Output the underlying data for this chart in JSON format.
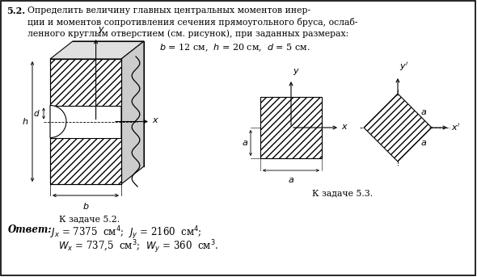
{
  "title_bold": "5.2.",
  "title_rest": " Определить величину главных центральных моментов инер-\nции и моментов сопротивления сечения прямоугольного бруса, ослаб-\nленного круглым отверстием (см. рисунок), при заданных размерах:",
  "params_line": "$b$ = 12 см,  $h$ = 20 см,  $d$ = 5 см.",
  "caption_left": "К задаче 5.2.",
  "caption_right": "К задаче 5.3.",
  "bg_color": "#ffffff",
  "hatch": "////",
  "fig_width": 5.9,
  "fig_height": 3.43,
  "dpi": 100
}
